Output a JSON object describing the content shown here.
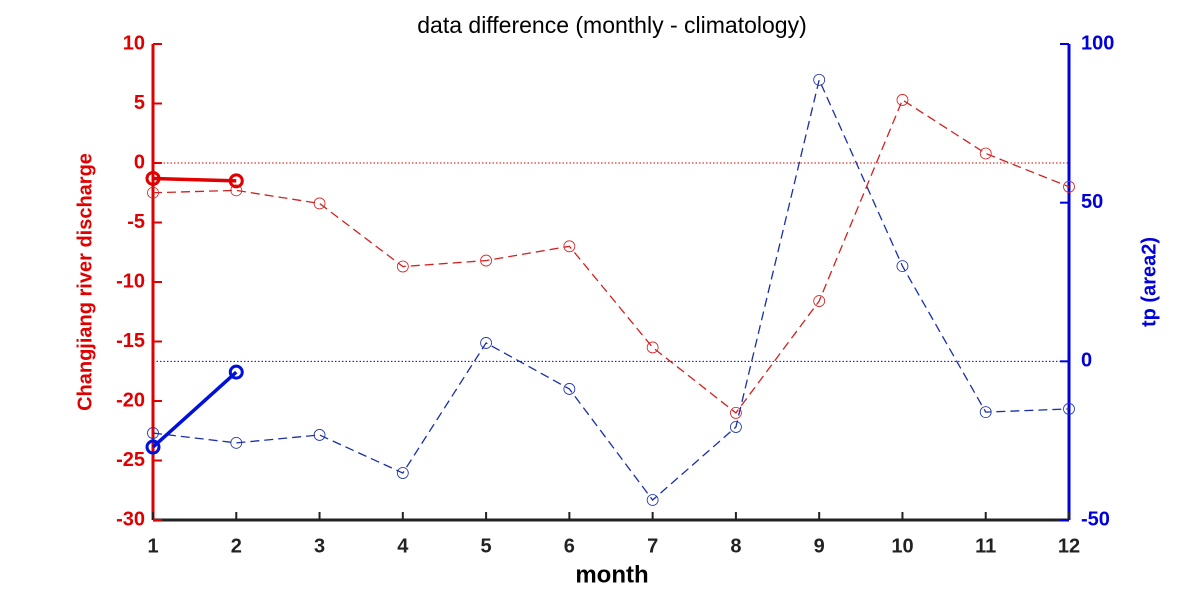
{
  "chart_data": {
    "type": "line",
    "title": "data difference (monthly - climatology)",
    "xlabel": "month",
    "ylabel": "Changjiang  river  discharge",
    "y2label": "tp  (area2)",
    "x": [
      1,
      2,
      3,
      4,
      5,
      6,
      7,
      8,
      9,
      10,
      11,
      12
    ],
    "xlim": [
      1,
      12
    ],
    "xticks": [
      1,
      2,
      3,
      4,
      5,
      6,
      7,
      8,
      9,
      10,
      11,
      12
    ],
    "ylim": [
      -30,
      10
    ],
    "yticks": [
      -30,
      -25,
      -20,
      -15,
      -10,
      -5,
      0,
      5,
      10
    ],
    "y2lim": [
      -50,
      100
    ],
    "y2ticks": [
      -50,
      0,
      50,
      100
    ],
    "ycolor": "#e00000",
    "y2color": "#0000dd",
    "series": [
      {
        "color": "#d42020",
        "linestyle": "dashed",
        "values": [
          -2.5,
          -2.3,
          -3.4,
          -8.7,
          -8.2,
          -7.0,
          -15.5,
          -21.0,
          -11.6,
          5.3,
          0.8,
          -2.0
        ]
      },
      {
        "color": "#1a2fa8",
        "linestyle": "dashed",
        "axis": "y2",
        "values": [
          -22.6,
          -25.7,
          -23.2,
          -35.2,
          5.8,
          -8.7,
          -43.7,
          -20.7,
          88.7,
          30.0,
          -16.0,
          -15.0
        ]
      },
      {
        "color": "#e00000",
        "linestyle": "solid",
        "values": [
          -1.3,
          -1.5,
          null,
          null,
          null,
          null,
          null,
          null,
          null,
          null,
          null,
          null
        ]
      },
      {
        "color": "#0010dd",
        "linestyle": "solid",
        "axis": "y2",
        "values": [
          -27.0,
          -3.4,
          null,
          null,
          null,
          null,
          null,
          null,
          null,
          null,
          null,
          null
        ]
      }
    ]
  }
}
